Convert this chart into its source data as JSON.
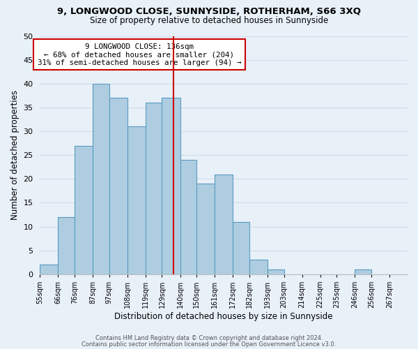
{
  "title": "9, LONGWOOD CLOSE, SUNNYSIDE, ROTHERHAM, S66 3XQ",
  "subtitle": "Size of property relative to detached houses in Sunnyside",
  "xlabel": "Distribution of detached houses by size in Sunnyside",
  "ylabel": "Number of detached properties",
  "footer_line1": "Contains HM Land Registry data © Crown copyright and database right 2024.",
  "footer_line2": "Contains public sector information licensed under the Open Government Licence v3.0.",
  "bin_labels": [
    "55sqm",
    "66sqm",
    "76sqm",
    "87sqm",
    "97sqm",
    "108sqm",
    "119sqm",
    "129sqm",
    "140sqm",
    "150sqm",
    "161sqm",
    "172sqm",
    "182sqm",
    "193sqm",
    "203sqm",
    "214sqm",
    "225sqm",
    "235sqm",
    "246sqm",
    "256sqm",
    "267sqm"
  ],
  "bin_edges": [
    55,
    66,
    76,
    87,
    97,
    108,
    119,
    129,
    140,
    150,
    161,
    172,
    182,
    193,
    203,
    214,
    225,
    235,
    246,
    256,
    267,
    278
  ],
  "values": [
    2,
    12,
    27,
    40,
    37,
    31,
    36,
    37,
    24,
    19,
    21,
    11,
    3,
    1,
    0,
    0,
    0,
    0,
    1,
    0,
    0
  ],
  "bar_color": "#aecde1",
  "bar_edge_color": "#5a9abf",
  "vline_x": 136,
  "vline_color": "#cc0000",
  "ylim": [
    0,
    50
  ],
  "yticks": [
    0,
    5,
    10,
    15,
    20,
    25,
    30,
    35,
    40,
    45,
    50
  ],
  "annotation_title": "9 LONGWOOD CLOSE: 136sqm",
  "annotation_line1": "← 68% of detached houses are smaller (204)",
  "annotation_line2": "31% of semi-detached houses are larger (94) →",
  "annotation_box_color": "#ffffff",
  "annotation_box_edge": "#cc0000",
  "grid_color": "#d0dce8",
  "background_color": "#e8f0f8"
}
